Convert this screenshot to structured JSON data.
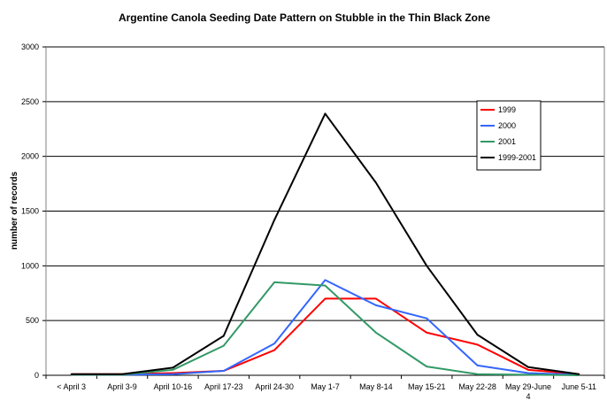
{
  "chart_data": {
    "type": "line",
    "title": "Argentine Canola Seeding Date Pattern on Stubble in the Thin Black Zone",
    "xlabel": "",
    "ylabel": "number of records",
    "categories": [
      "< April 3",
      "April 3-9",
      "April 10-16",
      "April 17-23",
      "April 24-30",
      "May 1-7",
      "May 8-14",
      "May 15-21",
      "May 22-28",
      "May 29-June 4",
      "June 5-11"
    ],
    "category_lines": [
      [
        "< April 3"
      ],
      [
        "April 3-9"
      ],
      [
        "April 10-16"
      ],
      [
        "April 17-23"
      ],
      [
        "April 24-30"
      ],
      [
        "May 1-7"
      ],
      [
        "May 8-14"
      ],
      [
        "May 15-21"
      ],
      [
        "May 22-28"
      ],
      [
        "May 29-June",
        "4"
      ],
      [
        "June 5-11"
      ]
    ],
    "ylim": [
      0,
      3000
    ],
    "yticks": [
      "0",
      "500",
      "1000",
      "1500",
      "2000",
      "2500",
      "3000"
    ],
    "grid": true,
    "legend_position": "top-right",
    "series": [
      {
        "name": "1999",
        "color": "#ff0000",
        "values": [
          10,
          10,
          20,
          40,
          230,
          700,
          700,
          390,
          280,
          50,
          10
        ]
      },
      {
        "name": "2000",
        "color": "#3366ff",
        "values": [
          5,
          5,
          10,
          40,
          290,
          870,
          640,
          520,
          90,
          20,
          5
        ]
      },
      {
        "name": "2001",
        "color": "#339966",
        "values": [
          5,
          5,
          50,
          270,
          850,
          820,
          390,
          80,
          10,
          5,
          0
        ]
      },
      {
        "name": "1999-2001",
        "color": "#000000",
        "values": [
          10,
          10,
          70,
          360,
          1420,
          2390,
          1760,
          1000,
          370,
          75,
          10
        ]
      }
    ]
  }
}
